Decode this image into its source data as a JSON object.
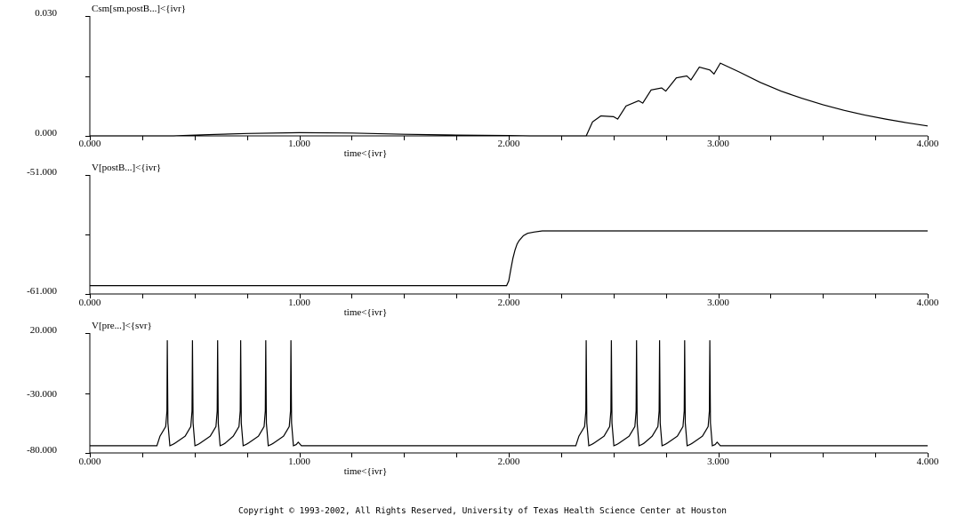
{
  "chart_data": [
    {
      "type": "line",
      "title": "Csm[sm.postB...]<{ivr}",
      "xlabel": "time<{ivr}",
      "ylabel": "",
      "xlim": [
        0,
        4
      ],
      "ylim": [
        0,
        0.03
      ],
      "x_tick_labels": [
        "0.000",
        "1.000",
        "2.000",
        "3.000",
        "4.000"
      ],
      "y_tick_labels": [
        "0.030",
        "0.000"
      ],
      "grid": false,
      "series": [
        {
          "x": [
            0,
            0.4,
            0.55,
            0.75,
            1.0,
            1.25,
            1.5,
            1.75,
            2.0,
            2.1,
            2.37,
            2.4,
            2.44,
            2.5,
            2.52,
            2.56,
            2.62,
            2.64,
            2.68,
            2.73,
            2.75,
            2.8,
            2.85,
            2.87,
            2.91,
            2.96,
            2.98,
            3.01,
            3.1,
            3.2,
            3.3,
            3.4,
            3.5,
            3.6,
            3.7,
            3.8,
            3.9,
            4.0
          ],
          "y": [
            0,
            0,
            0.0003,
            0.0006,
            0.0008,
            0.0007,
            0.0004,
            0.0002,
            0.0001,
            0,
            0,
            0.0035,
            0.005,
            0.0048,
            0.0042,
            0.0075,
            0.0088,
            0.0082,
            0.0115,
            0.012,
            0.0112,
            0.0145,
            0.015,
            0.014,
            0.0172,
            0.0165,
            0.0155,
            0.0182,
            0.016,
            0.0134,
            0.0112,
            0.0094,
            0.0078,
            0.0064,
            0.0052,
            0.0042,
            0.0033,
            0.0025
          ]
        }
      ]
    },
    {
      "type": "line",
      "title": "V[postB...]<{ivr}",
      "xlabel": "time<{ivr}",
      "ylabel": "",
      "xlim": [
        0,
        4
      ],
      "ylim": [
        -61,
        -51
      ],
      "x_tick_labels": [
        "0.000",
        "1.000",
        "2.000",
        "3.000",
        "4.000"
      ],
      "y_tick_labels": [
        "-51.000",
        "-61.000"
      ],
      "grid": false,
      "series": [
        {
          "x": [
            0,
            1.0,
            1.99,
            2.0,
            2.01,
            2.02,
            2.03,
            2.04,
            2.05,
            2.07,
            2.09,
            2.12,
            2.16,
            2.25,
            3.0,
            4.0
          ],
          "y": [
            -60.3,
            -60.3,
            -60.3,
            -59.9,
            -58.9,
            -58.0,
            -57.3,
            -56.8,
            -56.5,
            -56.1,
            -55.9,
            -55.8,
            -55.7,
            -55.7,
            -55.7,
            -55.7
          ]
        }
      ]
    },
    {
      "type": "line",
      "title": "V[pre...]<{svr}",
      "xlabel": "time<{ivr}",
      "ylabel": "",
      "xlim": [
        0,
        4
      ],
      "ylim": [
        -80,
        20
      ],
      "x_tick_labels": [
        "0.000",
        "1.000",
        "2.000",
        "3.000",
        "4.000"
      ],
      "y_tick_labels": [
        "20.000",
        "-30.000",
        "-80.000"
      ],
      "grid": false,
      "rest_potential": -74,
      "bursts": [
        {
          "start": 0.31,
          "spike_times": [
            0.37,
            0.49,
            0.61,
            0.72,
            0.84,
            0.96
          ],
          "end": 1.02
        },
        {
          "start": 2.31,
          "spike_times": [
            2.37,
            2.49,
            2.61,
            2.72,
            2.84,
            2.96
          ],
          "end": 3.02
        }
      ],
      "spike_peak": 14
    }
  ],
  "footer": {
    "copyright": "Copyright © 1993-2002, All Rights Reserved, University of Texas Health Science Center at Houston"
  }
}
